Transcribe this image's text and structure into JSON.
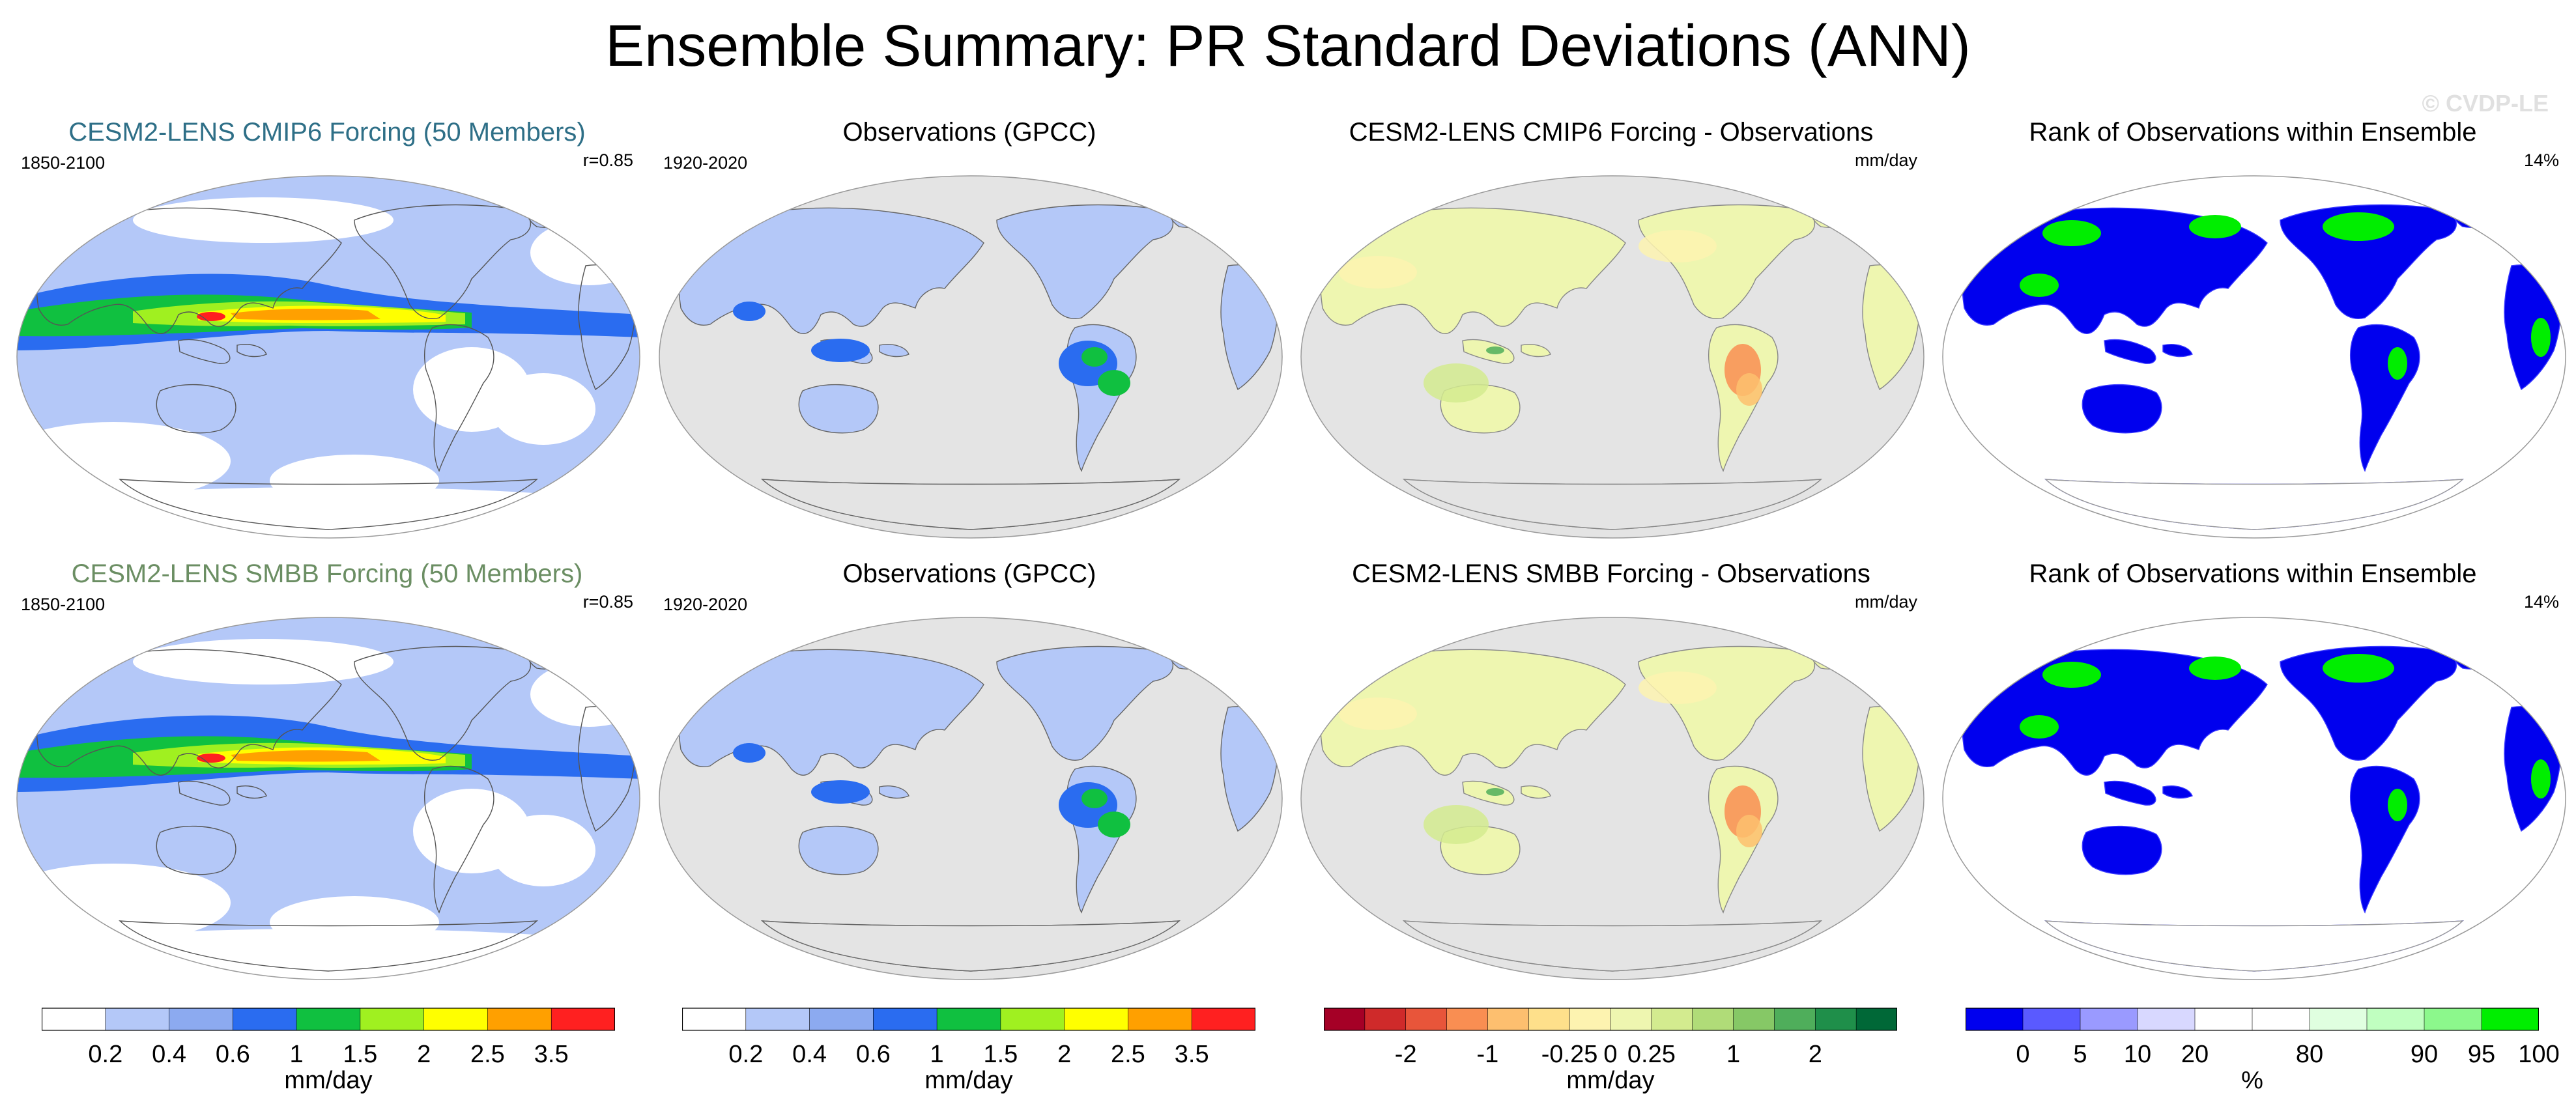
{
  "title": "Ensemble Summary: PR Standard Deviations (ANN)",
  "watermark": "© CVDP-LE",
  "colors": {
    "model1_title": "#2e6f87",
    "model2_title": "#6b8e63",
    "ocean": "#e4e4e4",
    "land_line": "#888888"
  },
  "panels": [
    {
      "id": "r0c0",
      "title": "CESM2-LENS CMIP6 Forcing (50 Members)",
      "left_label": "1850-2100",
      "right_label": "r=0.85",
      "title_color": "model1_title",
      "kind": "model"
    },
    {
      "id": "r0c1",
      "title": "Observations (GPCC)",
      "left_label": "1920-2020",
      "right_label": "",
      "title_color": "",
      "kind": "obs"
    },
    {
      "id": "r0c2",
      "title": "CESM2-LENS CMIP6 Forcing - Observations",
      "left_label": "",
      "right_label": "mm/day",
      "title_color": "",
      "kind": "diff"
    },
    {
      "id": "r0c3",
      "title": "Rank of Observations within Ensemble",
      "left_label": "",
      "right_label": "14%",
      "title_color": "",
      "kind": "rank"
    },
    {
      "id": "r1c0",
      "title": "CESM2-LENS SMBB Forcing (50 Members)",
      "left_label": "1850-2100",
      "right_label": "r=0.85",
      "title_color": "model2_title",
      "kind": "model"
    },
    {
      "id": "r1c1",
      "title": "Observations (GPCC)",
      "left_label": "1920-2020",
      "right_label": "",
      "title_color": "",
      "kind": "obs"
    },
    {
      "id": "r1c2",
      "title": "CESM2-LENS SMBB Forcing - Observations",
      "left_label": "",
      "right_label": "mm/day",
      "title_color": "",
      "kind": "diff"
    },
    {
      "id": "r1c3",
      "title": "Rank of Observations within Ensemble",
      "left_label": "",
      "right_label": "14%",
      "title_color": "",
      "kind": "rank"
    }
  ],
  "chart_data": [
    {
      "type": "colorbar",
      "name": "std-dev",
      "unit": "mm/day",
      "levels": [
        0.2,
        0.4,
        0.6,
        1,
        1.5,
        2,
        2.5,
        3.5
      ],
      "tick_labels": [
        "0.2",
        "0.4",
        "0.6",
        "1",
        "1.5",
        "2",
        "2.5",
        "3.5"
      ],
      "colors": [
        "#ffffff",
        "#b4c8f8",
        "#8caaf0",
        "#2a6cf0",
        "#10c040",
        "#a0f020",
        "#ffff00",
        "#ffa000",
        "#ff2020"
      ]
    },
    {
      "type": "colorbar",
      "name": "std-dev-obs",
      "unit": "mm/day",
      "levels": [
        0.2,
        0.4,
        0.6,
        1,
        1.5,
        2,
        2.5,
        3.5
      ],
      "tick_labels": [
        "0.2",
        "0.4",
        "0.6",
        "1",
        "1.5",
        "2",
        "2.5",
        "3.5"
      ],
      "colors": [
        "#ffffff",
        "#b4c8f8",
        "#8caaf0",
        "#2a6cf0",
        "#10c040",
        "#a0f020",
        "#ffff00",
        "#ffa000",
        "#ff2020"
      ]
    },
    {
      "type": "colorbar",
      "name": "difference",
      "unit": "mm/day",
      "tick_labels": [
        "-2",
        "-1",
        "-0.25",
        "0",
        "0.25",
        "1",
        "2"
      ],
      "tick_boundary_index": [
        2,
        4,
        6,
        7,
        8,
        10,
        12
      ],
      "colors": [
        "#a50026",
        "#cf2a2a",
        "#e8553a",
        "#f98e52",
        "#fdbf6f",
        "#fee08b",
        "#fdf3b0",
        "#eef6b0",
        "#d3eb8f",
        "#b0dc78",
        "#86c866",
        "#4fae5b",
        "#1f8f4a",
        "#006837"
      ]
    },
    {
      "type": "colorbar",
      "name": "rank",
      "unit": "%",
      "tick_labels": [
        "0",
        "5",
        "10",
        "20",
        "80",
        "90",
        "95",
        "100"
      ],
      "tick_boundary_index": [
        1,
        2,
        3,
        4,
        6,
        8,
        9,
        10
      ],
      "colors": [
        "#0000ee",
        "#5a5aff",
        "#9a9aff",
        "#d8d8ff",
        "#ffffff",
        "#ffffff",
        "#e0ffe0",
        "#c0ffc0",
        "#8cf88c",
        "#00ee00"
      ]
    }
  ]
}
